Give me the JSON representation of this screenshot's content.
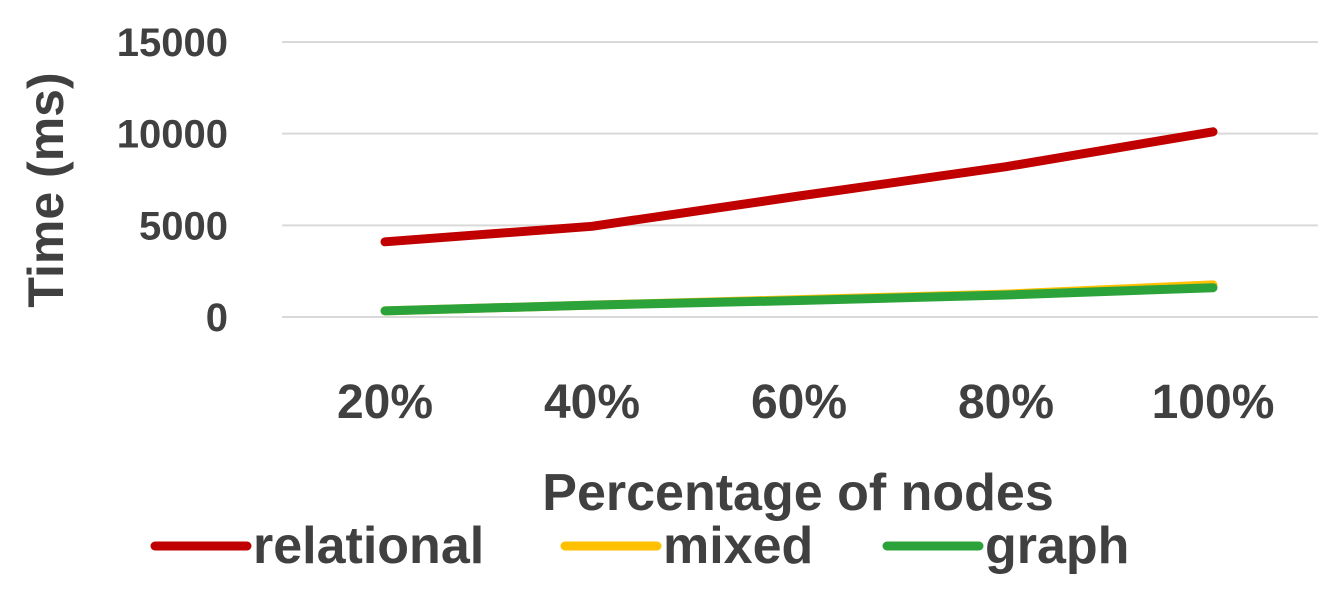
{
  "chart_data": {
    "type": "line",
    "title": "",
    "xlabel": "Percentage of nodes",
    "ylabel": "Time (ms)",
    "categories": [
      "20%",
      "40%",
      "60%",
      "80%",
      "100%"
    ],
    "ylim": [
      0,
      15000
    ],
    "yticks": [
      0,
      5000,
      10000,
      15000
    ],
    "ytick_labels": [
      "0",
      "5000",
      "10000",
      "15000"
    ],
    "grid": true,
    "legend_position": "bottom",
    "series": [
      {
        "name": "relational",
        "color": "#c00000",
        "values": [
          4100,
          4950,
          6600,
          8200,
          10100
        ]
      },
      {
        "name": "mixed",
        "color": "#ffc000",
        "values": [
          330,
          650,
          950,
          1250,
          1750
        ]
      },
      {
        "name": "graph",
        "color": "#2ca33a",
        "values": [
          330,
          650,
          900,
          1200,
          1600
        ]
      }
    ]
  }
}
